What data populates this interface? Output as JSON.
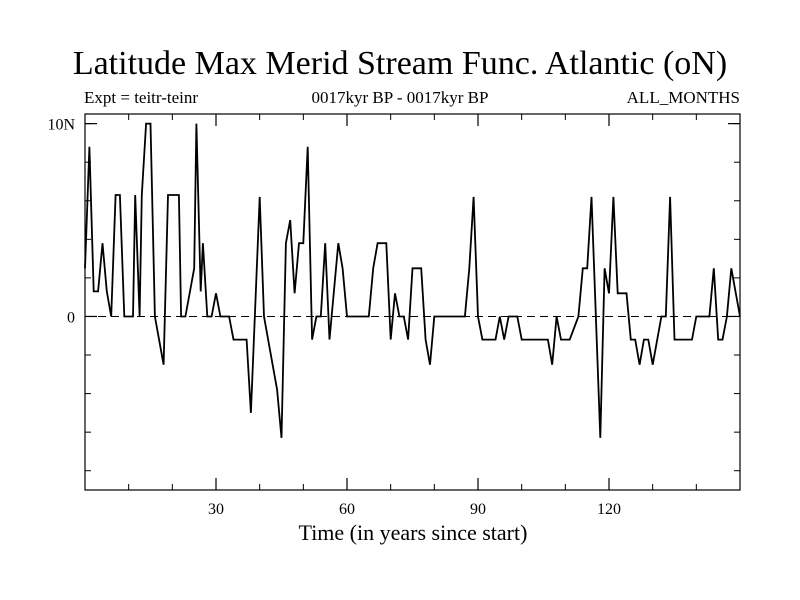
{
  "chart_data": {
    "type": "line",
    "title": "Latitude Max Merid Stream Func. Atlantic (oN)",
    "subtitle_left": "Expt = teitr-teinr",
    "subtitle_center": "0017kyr BP - 0017kyr BP",
    "subtitle_right": "ALL_MONTHS",
    "xlabel": "Time (in years since start)",
    "ylabel": "",
    "xlim": [
      0,
      150
    ],
    "ylim": [
      -9,
      10.5
    ],
    "xticks": [
      30,
      60,
      90,
      120
    ],
    "xtick_labels": [
      "30",
      "60",
      "90",
      "120"
    ],
    "yticks": [
      0,
      10
    ],
    "ytick_labels": [
      "0",
      "10N"
    ],
    "zero_line": 0,
    "series": [
      {
        "name": "teitr-teinr",
        "points": [
          [
            0.0,
            2.5
          ],
          [
            1.0,
            8.8
          ],
          [
            2.0,
            1.3
          ],
          [
            3.0,
            1.3
          ],
          [
            4.0,
            3.8
          ],
          [
            5.0,
            1.3
          ],
          [
            6.0,
            0.0
          ],
          [
            7.0,
            6.3
          ],
          [
            8.0,
            6.3
          ],
          [
            9.0,
            0.0
          ],
          [
            10.0,
            0.0
          ],
          [
            11.0,
            0.0
          ],
          [
            11.5,
            6.3
          ],
          [
            12.5,
            0.0
          ],
          [
            13.0,
            6.3
          ],
          [
            14.0,
            10.0
          ],
          [
            15.0,
            10.0
          ],
          [
            16.0,
            0.0
          ],
          [
            18.0,
            -2.5
          ],
          [
            19.0,
            6.3
          ],
          [
            20.0,
            6.3
          ],
          [
            21.5,
            6.3
          ],
          [
            22.0,
            0.0
          ],
          [
            23.0,
            0.0
          ],
          [
            25.0,
            2.5
          ],
          [
            25.5,
            10.0
          ],
          [
            26.5,
            1.3
          ],
          [
            27.0,
            3.8
          ],
          [
            28.0,
            0.0
          ],
          [
            29.0,
            0.0
          ],
          [
            30.0,
            1.2
          ],
          [
            31.0,
            0.0
          ],
          [
            33.0,
            0.0
          ],
          [
            34.0,
            -1.2
          ],
          [
            37.0,
            -1.2
          ],
          [
            38.0,
            -5.0
          ],
          [
            40.0,
            6.2
          ],
          [
            41.0,
            0.0
          ],
          [
            44.0,
            -3.8
          ],
          [
            45.0,
            -6.3
          ],
          [
            46.0,
            3.8
          ],
          [
            47.0,
            5.0
          ],
          [
            48.0,
            1.2
          ],
          [
            49.0,
            3.8
          ],
          [
            50.0,
            3.8
          ],
          [
            51.0,
            8.8
          ],
          [
            52.0,
            -1.2
          ],
          [
            53.0,
            0.0
          ],
          [
            54.0,
            0.0
          ],
          [
            55.0,
            3.8
          ],
          [
            56.0,
            -1.2
          ],
          [
            57.0,
            1.3
          ],
          [
            58.0,
            3.8
          ],
          [
            59.0,
            2.5
          ],
          [
            60.0,
            0.0
          ],
          [
            65.0,
            0.0
          ],
          [
            66.0,
            2.5
          ],
          [
            67.0,
            3.8
          ],
          [
            69.0,
            3.8
          ],
          [
            70.0,
            -1.2
          ],
          [
            71.0,
            1.2
          ],
          [
            72.0,
            0.0
          ],
          [
            73.0,
            0.0
          ],
          [
            74.0,
            -1.2
          ],
          [
            75.0,
            2.5
          ],
          [
            77.0,
            2.5
          ],
          [
            78.0,
            -1.2
          ],
          [
            79.0,
            -2.5
          ],
          [
            80.0,
            0.0
          ],
          [
            87.0,
            0.0
          ],
          [
            88.0,
            2.5
          ],
          [
            89.0,
            6.2
          ],
          [
            90.0,
            0.0
          ],
          [
            91.0,
            -1.2
          ],
          [
            94.0,
            -1.2
          ],
          [
            95.0,
            0.0
          ],
          [
            96.0,
            -1.2
          ],
          [
            97.0,
            0.0
          ],
          [
            99.0,
            0.0
          ],
          [
            100.0,
            -1.2
          ],
          [
            106.0,
            -1.2
          ],
          [
            107.0,
            -2.5
          ],
          [
            108.0,
            0.0
          ],
          [
            109.0,
            -1.2
          ],
          [
            111.0,
            -1.2
          ],
          [
            113.0,
            0.0
          ],
          [
            114.0,
            2.5
          ],
          [
            115.0,
            2.5
          ],
          [
            116.0,
            6.2
          ],
          [
            118.0,
            -6.3
          ],
          [
            119.0,
            2.5
          ],
          [
            120.0,
            1.2
          ],
          [
            121.0,
            6.2
          ],
          [
            122.0,
            1.2
          ],
          [
            124.0,
            1.2
          ],
          [
            125.0,
            -1.2
          ],
          [
            126.0,
            -1.2
          ],
          [
            127.0,
            -2.5
          ],
          [
            128.0,
            -1.2
          ],
          [
            129.0,
            -1.2
          ],
          [
            130.0,
            -2.5
          ],
          [
            132.0,
            0.0
          ],
          [
            133.0,
            0.0
          ],
          [
            134.0,
            6.2
          ],
          [
            135.0,
            -1.2
          ],
          [
            139.0,
            -1.2
          ],
          [
            140.0,
            0.0
          ],
          [
            143.0,
            0.0
          ],
          [
            144.0,
            2.5
          ],
          [
            145.0,
            -1.2
          ],
          [
            146.0,
            -1.2
          ],
          [
            147.0,
            0.0
          ],
          [
            148.0,
            2.5
          ],
          [
            150.0,
            0.0
          ]
        ]
      }
    ]
  }
}
